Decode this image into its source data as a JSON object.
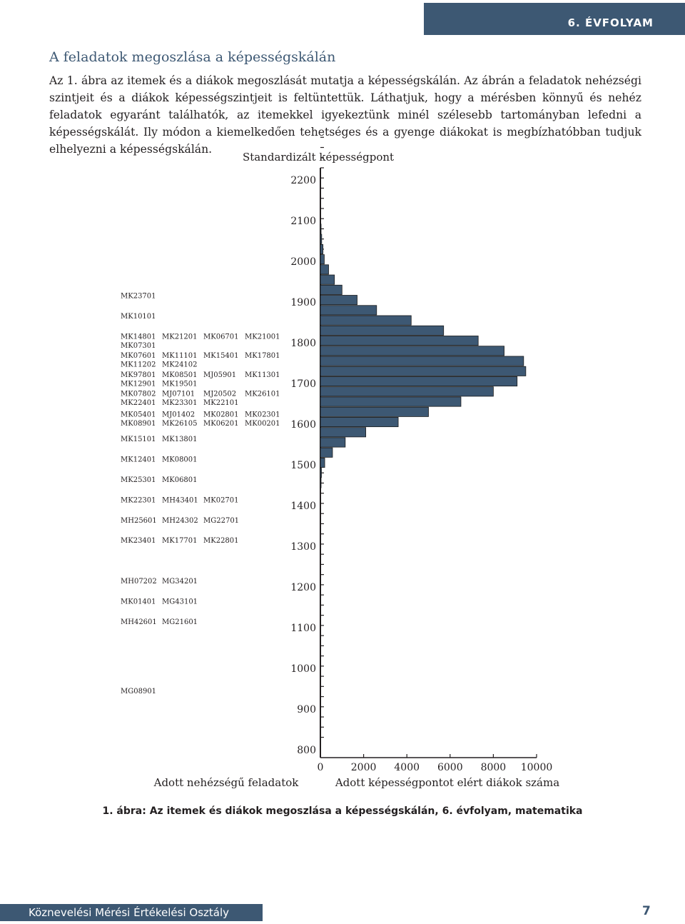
{
  "header": {
    "grade_label": "6. ÉVFOLYAM"
  },
  "section": {
    "heading": "A feladatok megoszlása a képességskálán",
    "paragraph": "Az 1. ábra az itemek és a diákok megoszlását mutatja a képességskálán. Az ábrán a feladatok nehézségi szintjeit és a diákok képességszintjeit is feltüntettük. Láthatjuk, hogy a mérésben könnyű és nehéz feladatok egyaránt találhatók, az itemekkel igyekeztünk minél szélesebb tartományban lefedni a képességskálát. Ily módon a kiemelkedően tehetséges és a gyenge diákokat is megbízhatóbban tudjuk elhelyezni a képességskálán."
  },
  "chart_data": {
    "type": "bar",
    "orientation": "horizontal",
    "title": "Standardizált képességpont",
    "xlabel": "Adott képességpontot elért diákok száma",
    "items_label": "Adott nehézségű feladatok",
    "bar_color": "#3d5873",
    "y_ticks": [
      2200,
      2100,
      2000,
      1900,
      1800,
      1700,
      1600,
      1500,
      1400,
      1300,
      1200,
      1100,
      1000,
      900,
      800
    ],
    "x_ticks": [
      0,
      2000,
      4000,
      6000,
      8000,
      10000
    ],
    "xlim": [
      0,
      10000
    ],
    "ylim": [
      775,
      2225
    ],
    "bins": [
      2225,
      2200,
      2175,
      2150,
      2125,
      2100,
      2075,
      2050,
      2025,
      2000,
      1975,
      1950,
      1925,
      1900,
      1875,
      1850,
      1825,
      1800,
      1775,
      1750,
      1725,
      1700,
      1675,
      1650,
      1625,
      1600,
      1575,
      1550,
      1525,
      1500,
      1475,
      1450,
      1425,
      1400,
      1375,
      1350,
      1325,
      1300,
      1275,
      1250,
      1225,
      1200,
      1175,
      1150,
      1125,
      1100,
      1075,
      1050,
      1025,
      1000,
      975,
      950,
      925,
      900,
      875,
      850,
      825,
      800
    ],
    "values": [
      0,
      0,
      0,
      0,
      0,
      0,
      30,
      60,
      120,
      180,
      380,
      650,
      1000,
      1700,
      2600,
      4200,
      5700,
      7300,
      8500,
      9400,
      9500,
      9100,
      8000,
      6500,
      5000,
      3600,
      2100,
      1150,
      560,
      200,
      50,
      10,
      0,
      0,
      0,
      0,
      0,
      0,
      0,
      0,
      0,
      0,
      0,
      0,
      0,
      0,
      0,
      0,
      0,
      0,
      0,
      0,
      0,
      0,
      0,
      0,
      0,
      0
    ],
    "item_rows": [
      {
        "level": 1912,
        "codes": [
          "MK23701"
        ]
      },
      {
        "level": 1862,
        "codes": [
          "MK10101"
        ]
      },
      {
        "level": 1812,
        "codes": [
          "MK14801",
          "MK21201",
          "MK06701",
          "MK21001"
        ]
      },
      {
        "level": 1790,
        "codes": [
          "MK07301"
        ]
      },
      {
        "level": 1765,
        "codes": [
          "MK07601",
          "MK11101",
          "MK15401",
          "MK17801"
        ]
      },
      {
        "level": 1743,
        "codes": [
          "MK11202",
          "MK24102"
        ]
      },
      {
        "level": 1718,
        "codes": [
          "MK97801",
          "MK08501",
          "MJ05901",
          "MK11301"
        ]
      },
      {
        "level": 1696,
        "codes": [
          "MK12901",
          "MK19501"
        ]
      },
      {
        "level": 1671,
        "codes": [
          "MK07802",
          "MJ07101",
          "MJ20502",
          "MK26101"
        ]
      },
      {
        "level": 1649,
        "codes": [
          "MK22401",
          "MK23301",
          "MK22101"
        ]
      },
      {
        "level": 1620,
        "codes": [
          "MK05401",
          "MJ01402",
          "MK02801",
          "MK02301"
        ]
      },
      {
        "level": 1598,
        "codes": [
          "MK08901",
          "MK26105",
          "MK06201",
          "MK00201"
        ]
      },
      {
        "level": 1560,
        "codes": [
          "MK15101",
          "MK13801"
        ]
      },
      {
        "level": 1510,
        "codes": [
          "MK12401",
          "MK08001"
        ]
      },
      {
        "level": 1460,
        "codes": [
          "MK25301",
          "MK06801"
        ]
      },
      {
        "level": 1410,
        "codes": [
          "MK22301",
          "MH43401",
          "MK02701"
        ]
      },
      {
        "level": 1360,
        "codes": [
          "MH25601",
          "MH24302",
          "MG22701"
        ]
      },
      {
        "level": 1310,
        "codes": [
          "MK23401",
          "MK17701",
          "MK22801"
        ]
      },
      {
        "level": 1210,
        "codes": [
          "MH07202",
          "MG34201"
        ]
      },
      {
        "level": 1160,
        "codes": [
          "MK01401",
          "MG43101"
        ]
      },
      {
        "level": 1110,
        "codes": [
          "MH42601",
          "MG21601"
        ]
      },
      {
        "level": 940,
        "codes": [
          "MG08901"
        ]
      }
    ]
  },
  "figure": {
    "caption": "1. ábra: Az itemek és diákok megoszlása a képességskálán, 6. évfolyam, matematika"
  },
  "footer": {
    "department": "Köznevelési Mérési Értékelési Osztály",
    "page_number": "7"
  }
}
